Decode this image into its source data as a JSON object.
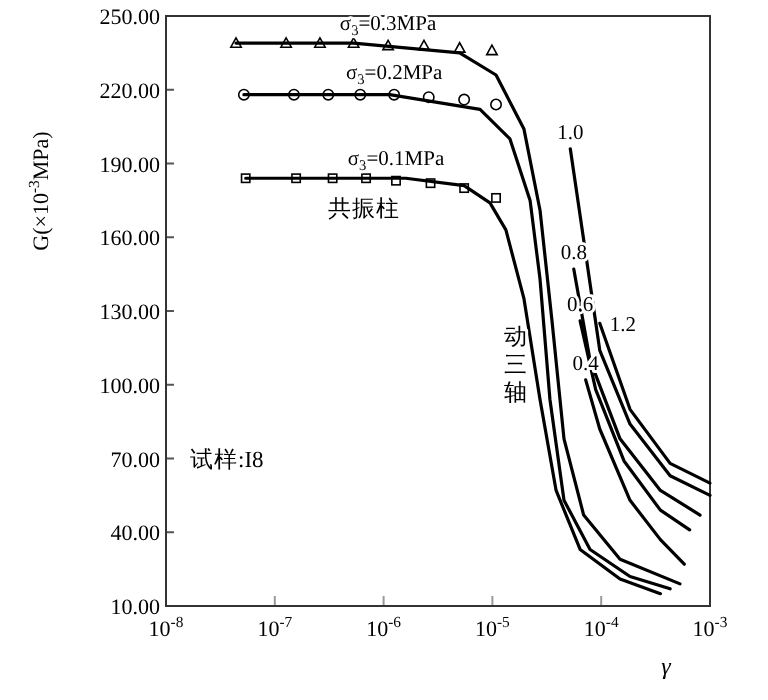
{
  "chart_data": {
    "type": "line",
    "xlabel": "γ",
    "ylabel": "G(×10$^{-3}$MPa)",
    "log": "x",
    "grid": false,
    "legend": false,
    "xlim": [
      1e-08,
      0.001
    ],
    "xticks": [
      {
        "value": 1e-08,
        "label": "10$^{-8}$"
      },
      {
        "value": 1e-07,
        "label": "10$^{-7}$"
      },
      {
        "value": 1e-06,
        "label": "10$^{-6}$"
      },
      {
        "value": 1e-05,
        "label": "10$^{-5}$"
      },
      {
        "value": 0.0001,
        "label": "10$^{-4}$"
      },
      {
        "value": 0.001,
        "label": "10$^{-3}$"
      }
    ],
    "ylim": [
      10,
      250
    ],
    "yticks": [
      {
        "value": 10,
        "label": "10.00"
      },
      {
        "value": 40,
        "label": "40.00"
      },
      {
        "value": 70,
        "label": "70.00"
      },
      {
        "value": 100,
        "label": "100.00"
      },
      {
        "value": 130,
        "label": "130.00"
      },
      {
        "value": 160,
        "label": "160.00"
      },
      {
        "value": 190,
        "label": "190.00"
      },
      {
        "value": 220,
        "label": "220.00"
      },
      {
        "value": 250,
        "label": "250.00"
      }
    ],
    "annotations": [
      "共振柱",
      "动三轴",
      "试样:I8"
    ],
    "series": [
      {
        "type": "scatter",
        "name": "σ$_{3}$=0.3MPa",
        "color": "#000000",
        "marker": "triangle",
        "x": [
          4.4e-08,
          1.27e-07,
          2.6e-07,
          5.3e-07,
          1.1e-06,
          2.35e-06,
          5e-06,
          9.9e-06
        ],
        "values": [
          239,
          239,
          239,
          239,
          238,
          238,
          237,
          236
        ]
      },
      {
        "type": "scatter",
        "name": "σ$_{3}$=0.2MPa",
        "color": "#000000",
        "marker": "circle",
        "x": [
          5.2e-08,
          1.5e-07,
          3.1e-07,
          6.1e-07,
          1.25e-06,
          2.6e-06,
          5.5e-06,
          1.08e-05
        ],
        "values": [
          218,
          218,
          218,
          218,
          218,
          217,
          216,
          214
        ]
      },
      {
        "type": "scatter",
        "name": "σ$_{3}$=0.1MPa",
        "color": "#000000",
        "marker": "square",
        "x": [
          5.4e-08,
          1.57e-07,
          3.4e-07,
          6.9e-07,
          1.3e-06,
          2.7e-06,
          5.5e-06,
          1.08e-05
        ],
        "values": [
          184,
          184,
          184,
          184,
          183,
          182,
          180,
          176
        ]
      },
      {
        "color": "#000000",
        "x": [
          4.4e-08,
          5.3e-07,
          5e-06,
          1.08e-05,
          1.95e-05,
          2.74e-05,
          3.53e-05,
          4.55e-05,
          6.9e-05,
          0.000149,
          0.00053
        ],
        "values": [
          239,
          239,
          235,
          226,
          204,
          171,
          126,
          78,
          47,
          29,
          19
        ]
      },
      {
        "color": "#000000",
        "x": [
          5.2e-08,
          1.14e-06,
          7.7e-06,
          1.45e-05,
          2.22e-05,
          2.74e-05,
          3.38e-05,
          4.55e-05,
          7.9e-05,
          0.000184,
          0.00043
        ],
        "values": [
          218,
          218,
          212,
          200,
          175,
          143,
          94,
          53,
          33,
          22,
          17
        ]
      },
      {
        "color": "#000000",
        "x": [
          5.4e-08,
          1.6e-06,
          5.5e-06,
          9.5e-06,
          1.33e-05,
          1.95e-05,
          2.74e-05,
          3.85e-05,
          6.4e-05,
          0.000149,
          0.00035
        ],
        "values": [
          184,
          184,
          181,
          174,
          163,
          135,
          94,
          57,
          33,
          21,
          15
        ]
      },
      {
        "name": "1.0",
        "color": "#000000",
        "x": [
          5.2e-05,
          6.9e-05,
          9.7e-05,
          0.000184,
          0.00043,
          0.001
        ],
        "values": [
          196,
          159,
          114,
          84,
          63,
          55
        ]
      },
      {
        "name": "0.8",
        "color": "#000000",
        "x": [
          5.6e-05,
          7.9e-05,
          0.000149,
          0.00035,
          0.00081
        ],
        "values": [
          147,
          110,
          78,
          57,
          47
        ]
      },
      {
        "name": "0.6",
        "color": "#000000",
        "x": [
          6.4e-05,
          8.9e-05,
          0.000162,
          0.00035,
          0.00065
        ],
        "values": [
          126,
          98,
          69,
          49,
          41
        ]
      },
      {
        "name": "0.4",
        "color": "#000000",
        "x": [
          7.2e-05,
          9.7e-05,
          0.000184,
          0.00035,
          0.00058
        ],
        "values": [
          102,
          82,
          53,
          37,
          27
        ]
      },
      {
        "name": "1.2",
        "color": "#000000",
        "x": [
          9.7e-05,
          0.000184,
          0.00043,
          0.001
        ],
        "values": [
          125,
          90,
          68,
          60
        ]
      }
    ]
  }
}
